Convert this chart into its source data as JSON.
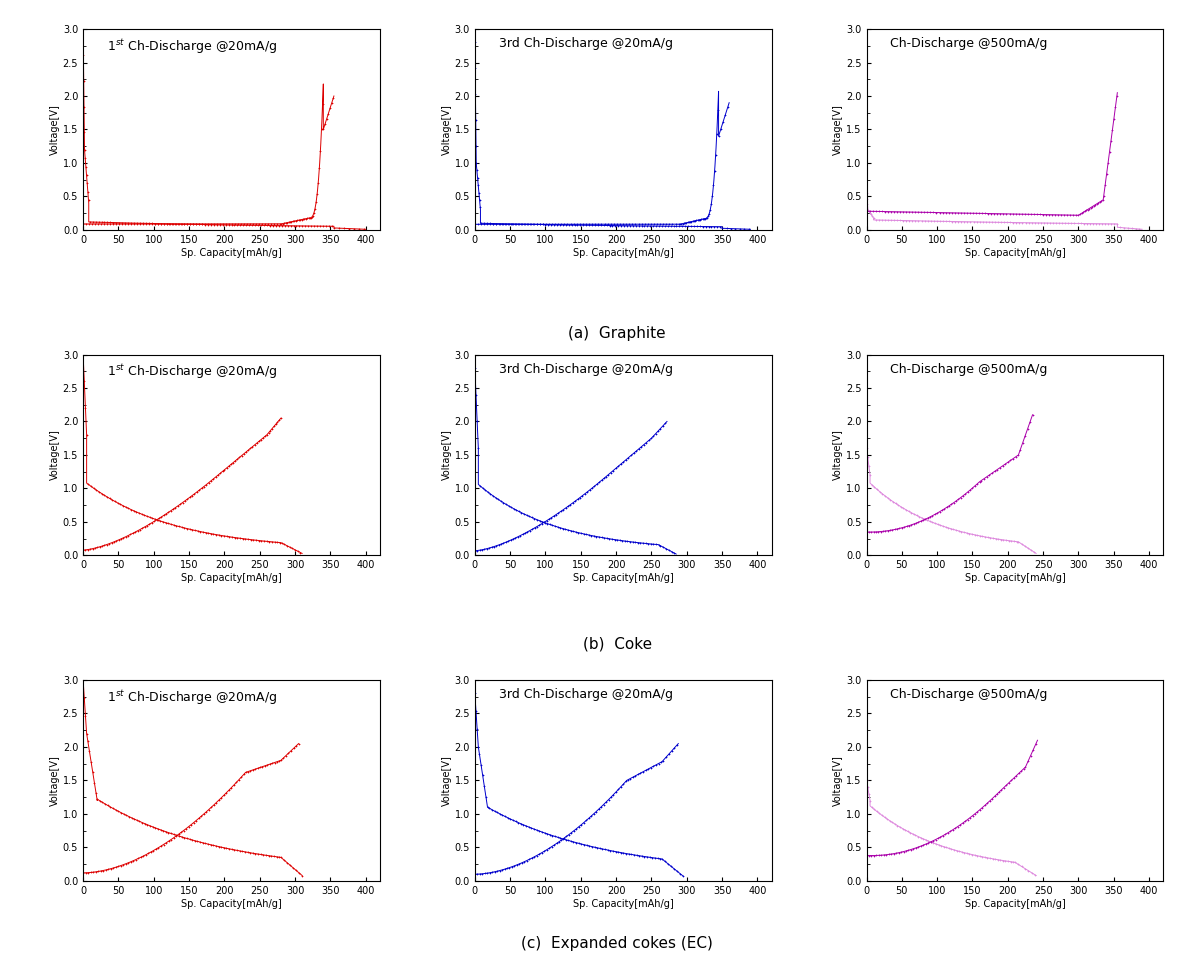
{
  "title_a": "(a)  Graphite",
  "title_b": "(b)  Coke",
  "title_c": "(c)  Expanded cokes (EC)",
  "ylabel": "Voltage[V]",
  "xlabel_graphite": "Sp. Capacity[mAh/g]",
  "xlabel_coke": "Sp. Capacity[mAh/g]",
  "xlabel_ec": "Sp. Capacity[mAh/g]",
  "color_1st": "#dd0000",
  "color_3rd": "#0000cc",
  "color_500_ch": "#aa00aa",
  "color_500_dis": "#dd88dd",
  "bg_color": "#ffffff",
  "marker": "+",
  "markersize": 1.5,
  "linewidth": 0.7,
  "title_fontsize": 11,
  "label_fontsize": 7,
  "tick_fontsize": 7,
  "inner_title_fontsize": 9
}
